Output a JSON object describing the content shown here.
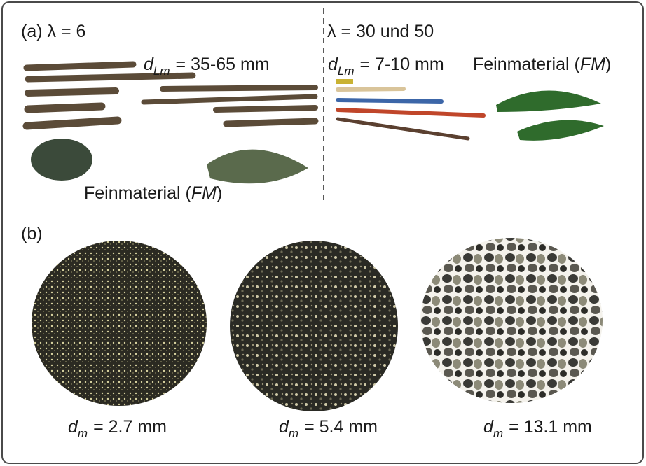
{
  "panel_a": {
    "left": {
      "label": "(a) λ = 6",
      "size": {
        "symbol": "d",
        "subscript": "Lm",
        "text": "= 35-65 mm"
      },
      "fine": {
        "before": "Feinmaterial (",
        "italic": "FM",
        "after": ")"
      }
    },
    "right": {
      "label": "λ = 30 und 50",
      "size": {
        "symbol": "d",
        "subscript": "Lm",
        "text": "= 7-10 mm"
      },
      "fine": {
        "before": "Feinmaterial (",
        "italic": "FM",
        "after": ")"
      }
    }
  },
  "panel_b": {
    "label": "(b)",
    "samples": [
      {
        "symbol": "d",
        "subscript": "m",
        "text": "= 2.7 mm"
      },
      {
        "symbol": "d",
        "subscript": "m",
        "text": "= 5.4 mm"
      },
      {
        "symbol": "d",
        "subscript": "m",
        "text": "= 13.1 mm"
      }
    ]
  }
}
